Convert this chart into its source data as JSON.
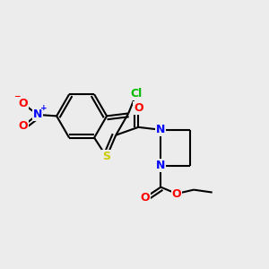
{
  "bg_color": "#ececec",
  "bond_color": "#000000",
  "bond_width": 1.5,
  "atoms": {
    "S": {
      "color": "#cccc00"
    },
    "N": {
      "color": "#0000ff"
    },
    "O": {
      "color": "#ff0000"
    },
    "Cl": {
      "color": "#00bb00"
    }
  },
  "xlim": [
    0,
    10
  ],
  "ylim": [
    0,
    10
  ]
}
